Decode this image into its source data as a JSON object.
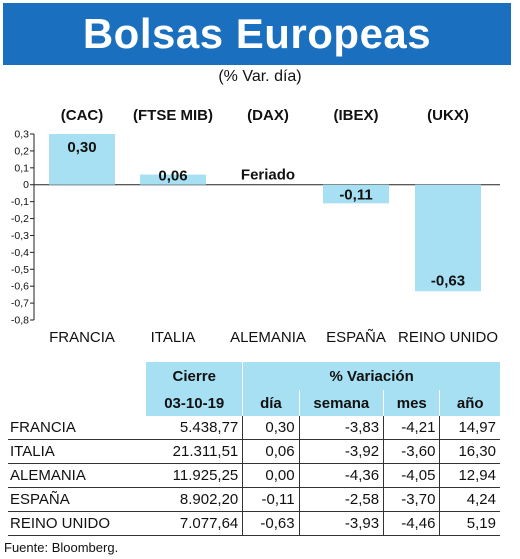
{
  "header": {
    "title": "Bolsas Europeas",
    "subtitle": "(% Var. día)"
  },
  "chart_data": {
    "type": "bar",
    "categories": [
      "FRANCIA",
      "ITALIA",
      "ALEMANIA",
      "ESPAÑA",
      "REINO UNIDO"
    ],
    "index_labels": [
      "(CAC)",
      "(FTSE MIB)",
      "(DAX)",
      "(IBEX)",
      "(UKX)"
    ],
    "values": [
      0.3,
      0.06,
      0,
      -0.11,
      -0.63
    ],
    "value_labels": [
      "0,30",
      "0,06",
      "Feriado",
      "-0,11",
      "-0,63"
    ],
    "ylim": [
      -0.8,
      0.3
    ],
    "yticks": [
      "0,3",
      "0,2",
      "0,1",
      "0",
      "-0,1",
      "-0,2",
      "-0,3",
      "-0,4",
      "-0,5",
      "-0,6",
      "-0,7",
      "-0,8"
    ],
    "grid": false,
    "bar_color": "#a6e0f2"
  },
  "table": {
    "header_cierre": "Cierre",
    "header_variacion": "% Variación",
    "date": "03-10-19",
    "subheaders": [
      "día",
      "semana",
      "mes",
      "año"
    ],
    "rows": [
      {
        "name": "FRANCIA",
        "cierre": "5.438,77",
        "dia": "0,30",
        "semana": "-3,83",
        "mes": "-4,21",
        "ano": "14,97"
      },
      {
        "name": "ITALIA",
        "cierre": "21.311,51",
        "dia": "0,06",
        "semana": "-3,92",
        "mes": "-3,60",
        "ano": "16,30"
      },
      {
        "name": "ALEMANIA",
        "cierre": "11.925,25",
        "dia": "0,00",
        "semana": "-4,36",
        "mes": "-4,05",
        "ano": "12,94"
      },
      {
        "name": "ESPAÑA",
        "cierre": "8.902,20",
        "dia": "-0,11",
        "semana": "-2,58",
        "mes": "-3,70",
        "ano": "4,24"
      },
      {
        "name": "REINO UNIDO",
        "cierre": "7.077,64",
        "dia": "-0,63",
        "semana": "-3,93",
        "mes": "-4,46",
        "ano": "5,19"
      }
    ]
  },
  "footer": {
    "source": "Fuente: Bloomberg."
  },
  "colors": {
    "title_bg": "#1a6fbf",
    "accent_light": "#a6e0f2"
  }
}
